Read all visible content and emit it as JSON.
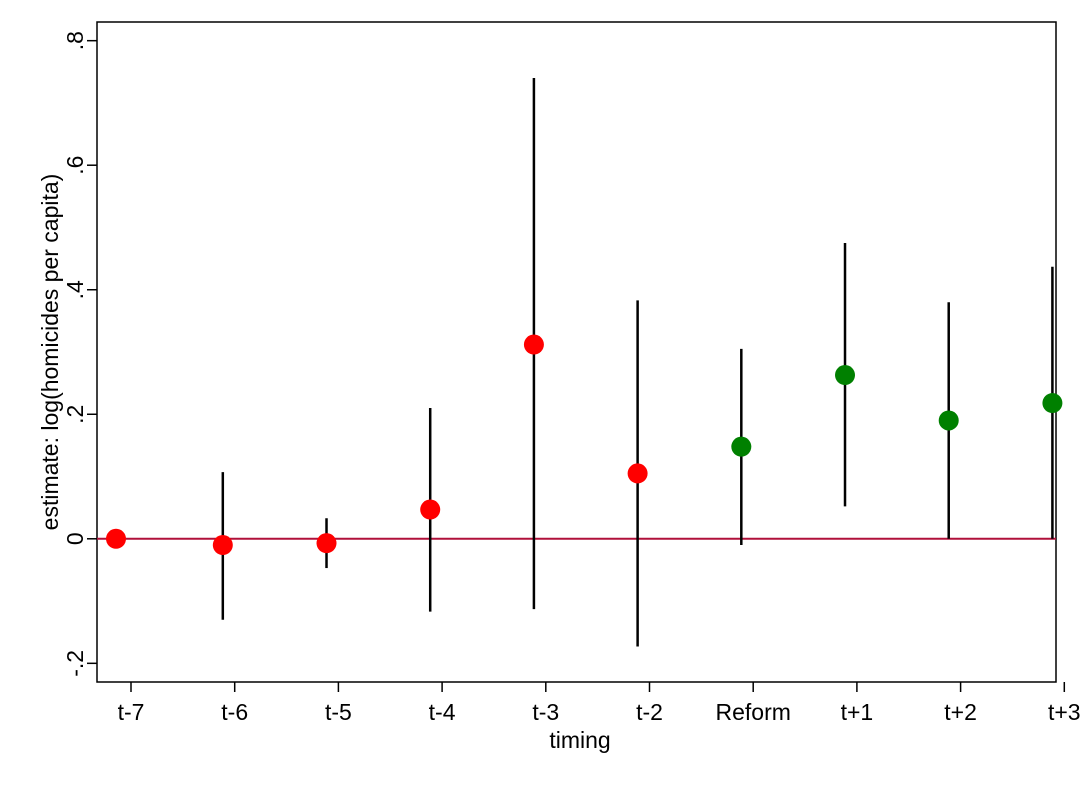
{
  "chart_data": {
    "type": "scatter",
    "title": "",
    "xlabel": "timing",
    "ylabel": "estimate: log(homicides per capita)",
    "ylim": [
      -0.23,
      0.83
    ],
    "yticks": [
      -0.2,
      0,
      0.2,
      0.4,
      0.6,
      0.8
    ],
    "ytick_labels": [
      "-.2",
      "0",
      ".2",
      ".4",
      ".6",
      ".8"
    ],
    "categories": [
      "t-7",
      "t-6",
      "t-5",
      "t-4",
      "t-3",
      "t-2",
      "Reform",
      "t+1",
      "t+2",
      "t+3"
    ],
    "reference_line": {
      "y": 0,
      "color": "#b0103a"
    },
    "grid": false,
    "legend": "none",
    "colors": {
      "pre": "#ff0000",
      "post": "#008000",
      "ci": "#000000"
    },
    "points": [
      {
        "x": 1.0,
        "y": 0.0,
        "lo": null,
        "hi": null,
        "group": "pre"
      },
      {
        "x": 2.03,
        "y": -0.01,
        "lo": -0.13,
        "hi": 0.107,
        "group": "pre"
      },
      {
        "x": 3.03,
        "y": -0.007,
        "lo": -0.047,
        "hi": 0.033,
        "group": "pre"
      },
      {
        "x": 4.03,
        "y": 0.047,
        "lo": -0.117,
        "hi": 0.21,
        "group": "pre"
      },
      {
        "x": 5.03,
        "y": 0.312,
        "lo": -0.113,
        "hi": 0.74,
        "group": "pre"
      },
      {
        "x": 6.03,
        "y": 0.105,
        "lo": -0.173,
        "hi": 0.383,
        "group": "pre"
      },
      {
        "x": 7.03,
        "y": 0.148,
        "lo": -0.01,
        "hi": 0.305,
        "group": "post"
      },
      {
        "x": 8.03,
        "y": 0.263,
        "lo": 0.052,
        "hi": 0.475,
        "group": "post"
      },
      {
        "x": 9.03,
        "y": 0.19,
        "lo": 0.0,
        "hi": 0.38,
        "group": "post"
      },
      {
        "x": 10.03,
        "y": 0.218,
        "lo": 0.0,
        "hi": 0.437,
        "group": "post"
      }
    ]
  }
}
